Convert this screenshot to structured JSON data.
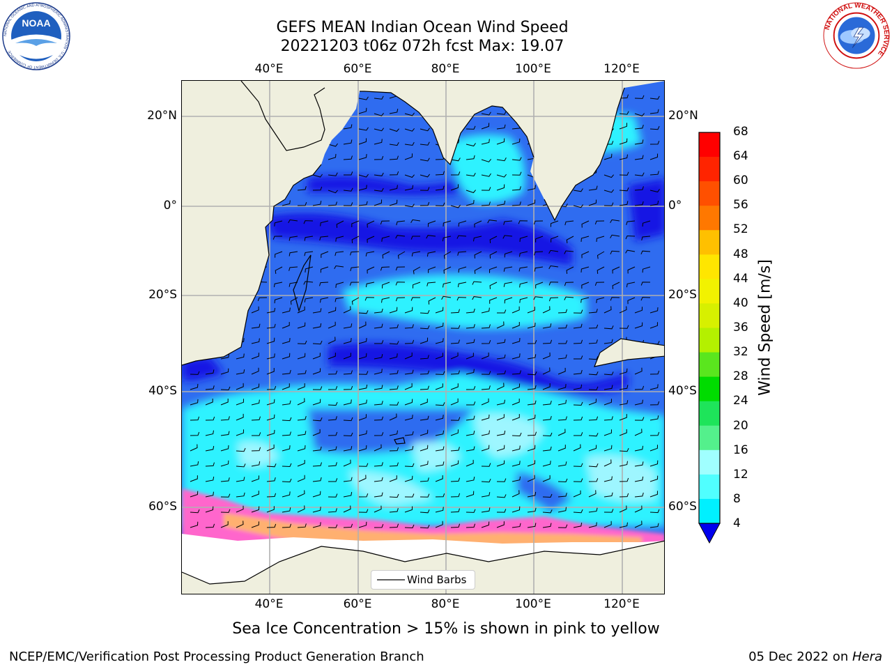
{
  "title_line1": "GEFS MEAN Indian Ocean Wind Speed",
  "title_line2": "20221203 t06z 072h fcst   Max: 19.07",
  "logos": {
    "left": {
      "name": "noaa-logo",
      "text": "NOAA",
      "ring_text": "NATIONAL OCEANIC AND ATMOSPHERIC ADMINISTRATION · U.S. DEPARTMENT OF COMMERCE"
    },
    "right": {
      "name": "nws-logo",
      "ring_text": "NATIONAL WEATHER SERVICE"
    }
  },
  "axes": {
    "lon_ticks": [
      "40°E",
      "60°E",
      "80°E",
      "100°E",
      "120°E"
    ],
    "lat_ticks_left": [
      "20°N",
      "0°",
      "20°S",
      "40°S",
      "60°S"
    ],
    "lat_ticks_right": [
      "20°N",
      "0°",
      "20°S",
      "40°S",
      "60°S"
    ]
  },
  "legend": {
    "label": "Wind Barbs"
  },
  "colorbar": {
    "label": "Wind Speed [m/s]",
    "ticks": [
      "68",
      "64",
      "60",
      "56",
      "52",
      "48",
      "44",
      "40",
      "36",
      "32",
      "28",
      "24",
      "20",
      "16",
      "12",
      "8",
      "4"
    ],
    "colors": [
      "#ff0000",
      "#ff2400",
      "#ff5000",
      "#ff7800",
      "#ff9c00",
      "#ffc000",
      "#ffe600",
      "#f2f200",
      "#d7f000",
      "#b4f000",
      "#5ae61e",
      "#00dc00",
      "#1ee45a",
      "#54f08c",
      "#a0ffff",
      "#50ffff",
      "#00f0ff",
      "#0066ff"
    ],
    "under_color": "#0000ee"
  },
  "caption": "Sea Ice Concentration > 15% is shown in pink to yellow",
  "footer": {
    "left": "NCEP/EMC/Verification Post Processing Product Generation Branch",
    "right_date": "05 Dec 2022 on ",
    "right_host": "Hera"
  },
  "map_colors": {
    "land": "#efefde",
    "ocean_base": "#2f6cf0",
    "dark_blue": "#1010e6",
    "cyan": "#2ef2ff",
    "light_cyan": "#9ef6ff",
    "ice_pink": "#ff66cc",
    "ice_white": "#ffffff"
  }
}
